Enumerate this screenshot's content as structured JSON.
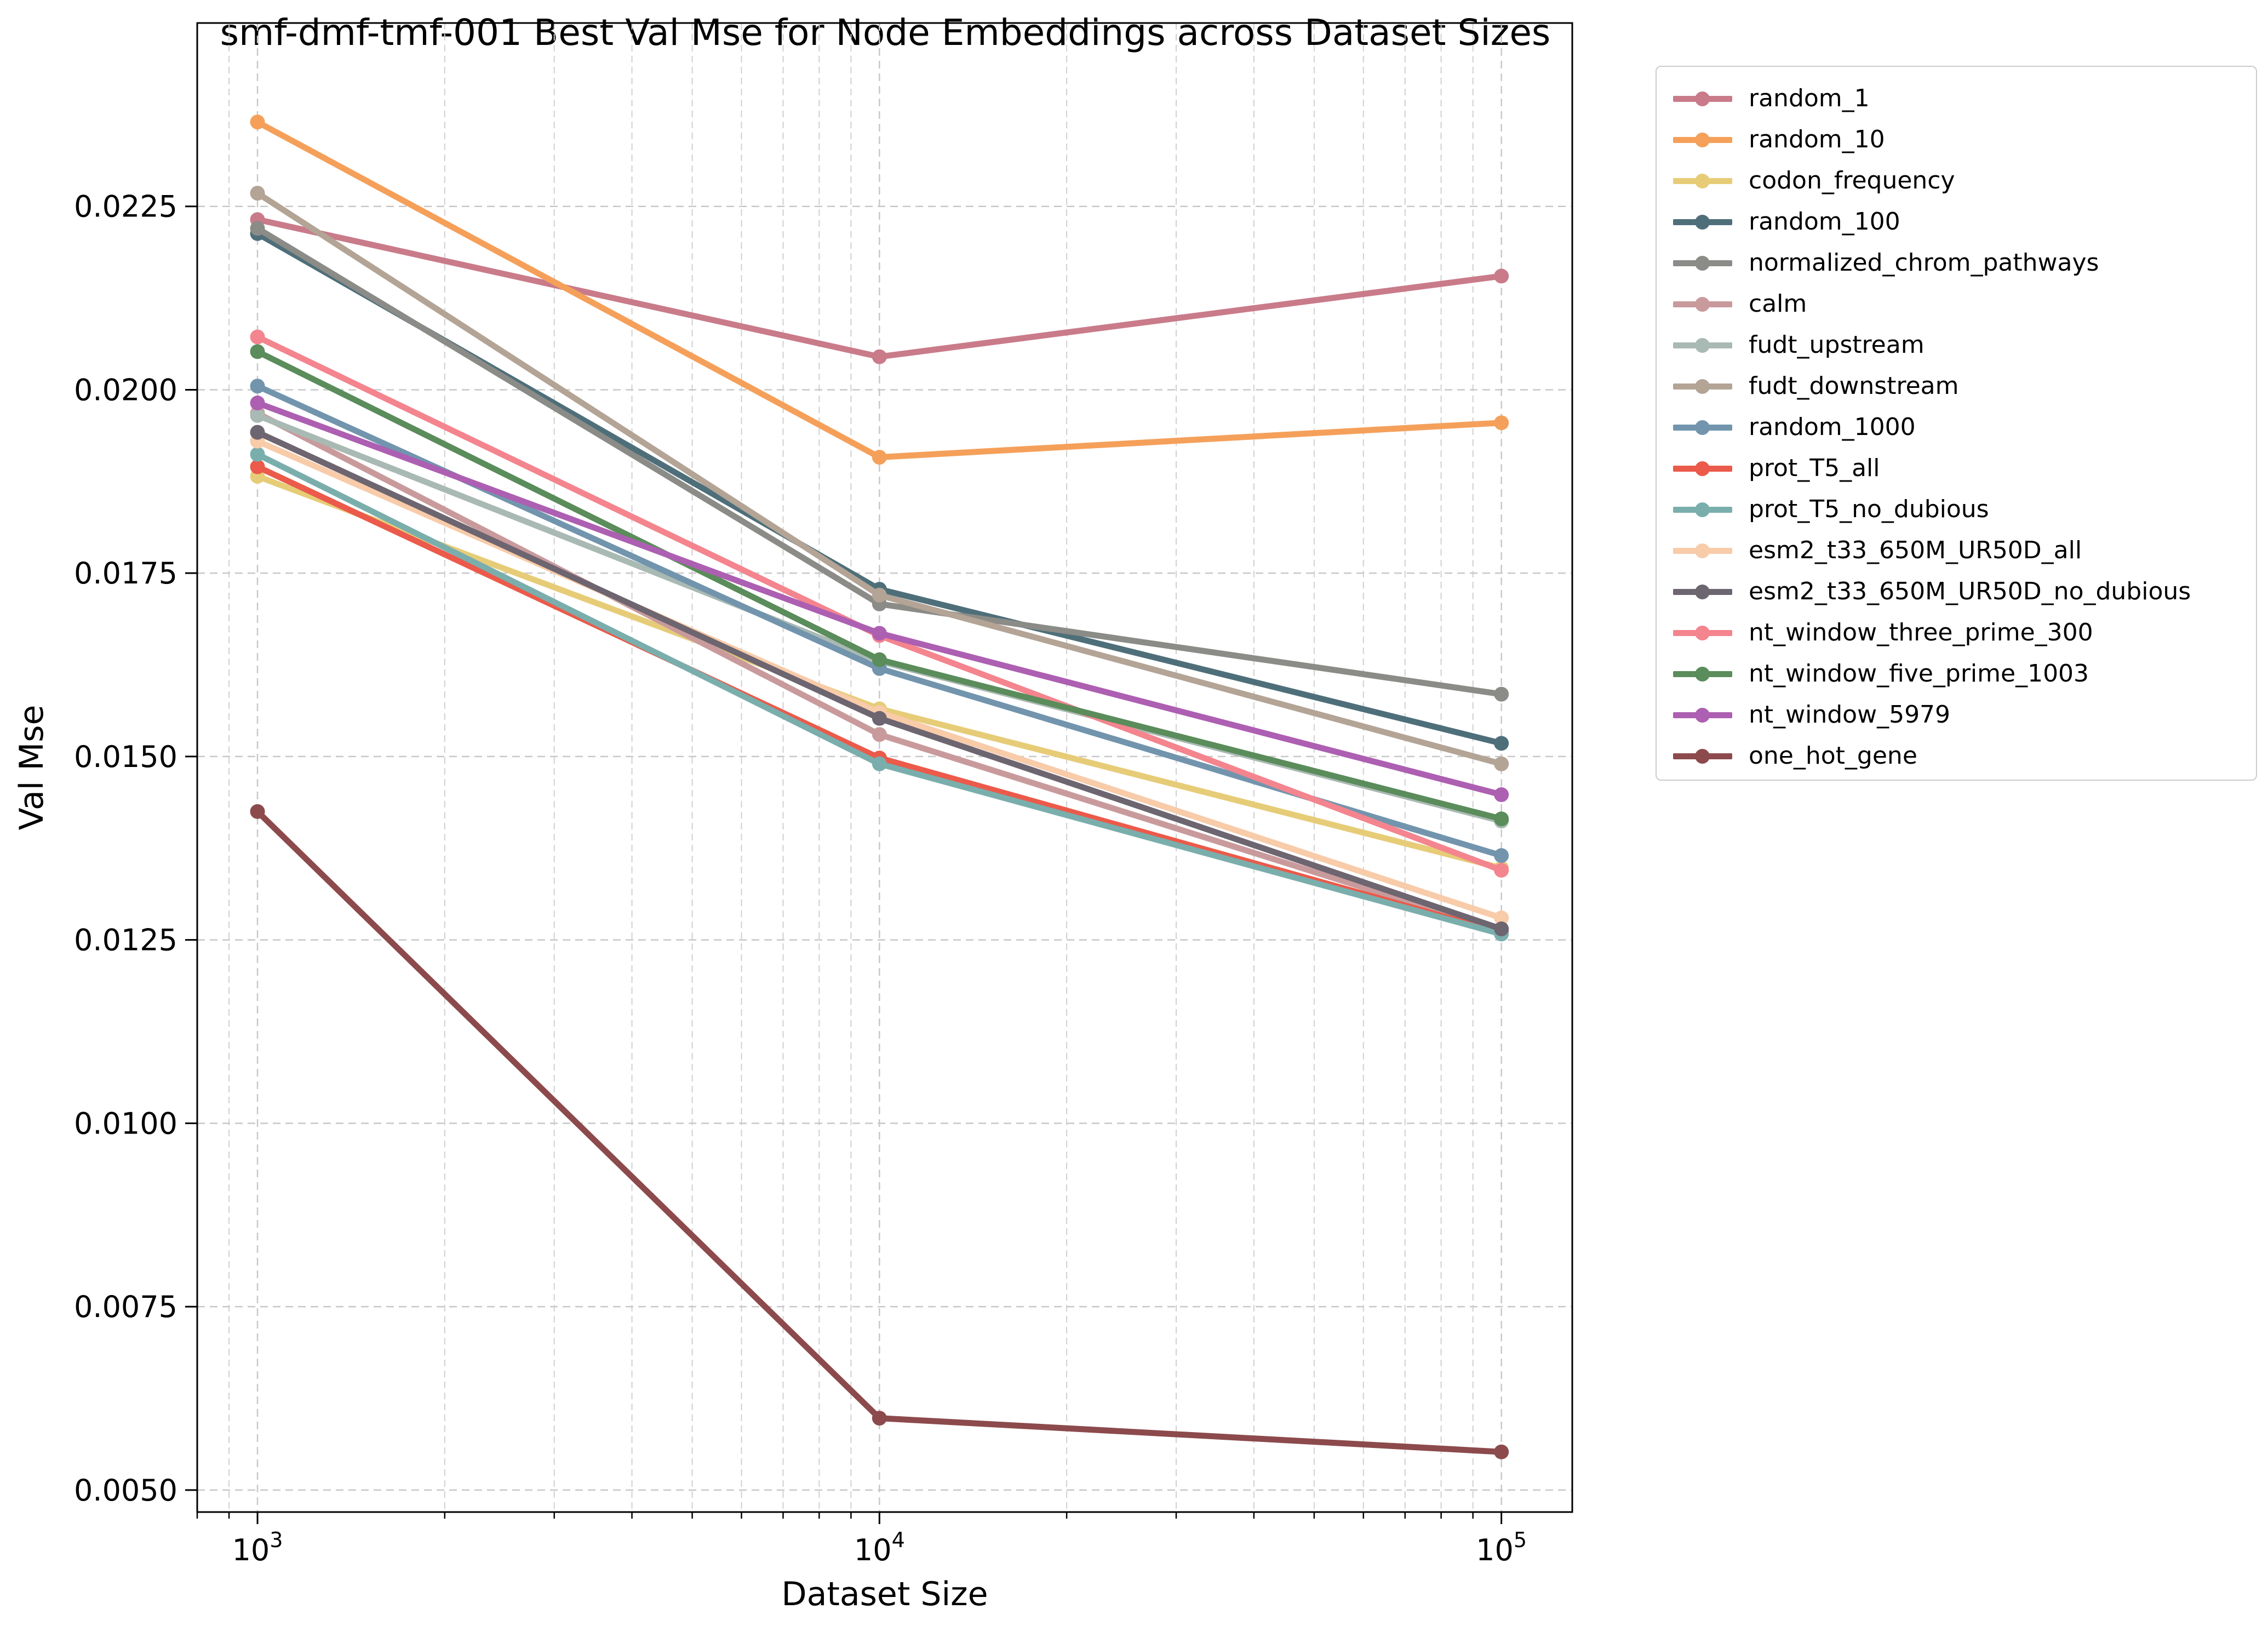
{
  "chart_data": {
    "type": "line",
    "title": "smf-dmf-tmf-001 Best Val Mse for Node Embeddings across Dataset Sizes",
    "xlabel": "Dataset Size",
    "ylabel": "Val Mse",
    "x_scale": "log",
    "x": [
      1000,
      10000,
      100000
    ],
    "x_tick_labels": [
      "10^3",
      "10^4",
      "10^5"
    ],
    "xlim": [
      800,
      130000
    ],
    "ylim": [
      0.0047,
      0.025
    ],
    "y_ticks": [
      "0.0050",
      "0.0075",
      "0.0100",
      "0.0125",
      "0.0150",
      "0.0175",
      "0.0200",
      "0.0225"
    ],
    "grid": true,
    "legend_position": "outside right",
    "series": [
      {
        "name": "random_1",
        "color": "#c97b8a",
        "values": [
          0.02232,
          0.02045,
          0.02155
        ]
      },
      {
        "name": "random_10",
        "color": "#f5a05a",
        "values": [
          0.02365,
          0.01908,
          0.01955
        ]
      },
      {
        "name": "codon_frequency",
        "color": "#e7cc78",
        "values": [
          0.01882,
          0.01565,
          0.01348
        ]
      },
      {
        "name": "random_100",
        "color": "#4e6f7a",
        "values": [
          0.02213,
          0.01728,
          0.01518
        ]
      },
      {
        "name": "normalized_chrom_pathways",
        "color": "#8b8b87",
        "values": [
          0.0222,
          0.01708,
          0.01585
        ]
      },
      {
        "name": "calm",
        "color": "#c99a9c",
        "values": [
          0.01968,
          0.0153,
          0.01262
        ]
      },
      {
        "name": "fudt_upstream",
        "color": "#a9b9b3",
        "values": [
          0.01965,
          0.0163,
          0.01412
        ]
      },
      {
        "name": "fudt_downstream",
        "color": "#b3a496",
        "values": [
          0.02268,
          0.0172,
          0.0149
        ]
      },
      {
        "name": "random_1000",
        "color": "#7295ad",
        "values": [
          0.02005,
          0.0162,
          0.01365
        ]
      },
      {
        "name": "prot_T5_all",
        "color": "#eb5a4a",
        "values": [
          0.01895,
          0.01498,
          0.0126
        ]
      },
      {
        "name": "prot_T5_no_dubious",
        "color": "#7aaeac",
        "values": [
          0.01912,
          0.0149,
          0.01258
        ]
      },
      {
        "name": "esm2_t33_650M_UR50D_all",
        "color": "#f8cba9",
        "values": [
          0.0193,
          0.0156,
          0.0128
        ]
      },
      {
        "name": "esm2_t33_650M_UR50D_no_dubious",
        "color": "#6d6570",
        "values": [
          0.01942,
          0.01552,
          0.01265
        ]
      },
      {
        "name": "nt_window_three_prime_300",
        "color": "#f4848e",
        "values": [
          0.02072,
          0.01665,
          0.01345
        ]
      },
      {
        "name": "nt_window_five_prime_1003",
        "color": "#5b8c5b",
        "values": [
          0.02052,
          0.01632,
          0.01415
        ]
      },
      {
        "name": "nt_window_5979",
        "color": "#ad5fb2",
        "values": [
          0.01982,
          0.01668,
          0.01448
        ]
      },
      {
        "name": "one_hot_gene",
        "color": "#8c4a4c",
        "values": [
          0.01425,
          0.00598,
          0.00552
        ]
      }
    ]
  }
}
